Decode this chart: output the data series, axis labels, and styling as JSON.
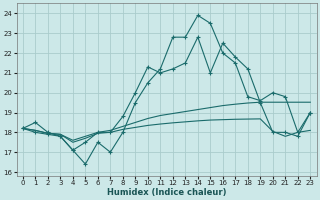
{
  "xlabel": "Humidex (Indice chaleur)",
  "bg_color": "#cce8e8",
  "grid_color": "#aacccc",
  "line_color": "#1a6b6b",
  "xlim": [
    -0.5,
    23.5
  ],
  "ylim": [
    15.8,
    24.5
  ],
  "yticks": [
    16,
    17,
    18,
    19,
    20,
    21,
    22,
    23,
    24
  ],
  "xticks": [
    0,
    1,
    2,
    3,
    4,
    5,
    6,
    7,
    8,
    9,
    10,
    11,
    12,
    13,
    14,
    15,
    16,
    17,
    18,
    19,
    20,
    21,
    22,
    23
  ],
  "series1": [
    18.2,
    18.5,
    18.0,
    17.8,
    17.1,
    16.4,
    17.5,
    17.0,
    18.0,
    19.5,
    20.5,
    21.2,
    22.8,
    22.8,
    23.9,
    23.5,
    22.0,
    21.5,
    19.8,
    19.6,
    20.0,
    19.8,
    18.0,
    19.0
  ],
  "series2": [
    18.2,
    18.0,
    17.9,
    17.8,
    17.1,
    17.5,
    18.0,
    18.0,
    18.8,
    20.0,
    21.3,
    21.0,
    21.2,
    21.5,
    22.8,
    21.0,
    22.5,
    21.8,
    21.2,
    19.5,
    18.0,
    18.0,
    17.8,
    19.0
  ],
  "series3": [
    18.2,
    18.1,
    17.95,
    17.9,
    17.6,
    17.8,
    18.0,
    18.1,
    18.3,
    18.5,
    18.7,
    18.85,
    18.95,
    19.05,
    19.15,
    19.25,
    19.35,
    19.42,
    19.48,
    19.52,
    19.52,
    19.52,
    19.52,
    19.52
  ],
  "series4": [
    18.2,
    18.1,
    17.95,
    17.9,
    17.5,
    17.7,
    17.95,
    18.0,
    18.15,
    18.25,
    18.35,
    18.42,
    18.48,
    18.53,
    18.58,
    18.62,
    18.64,
    18.66,
    18.67,
    18.68,
    18.05,
    17.8,
    18.0,
    18.1
  ]
}
